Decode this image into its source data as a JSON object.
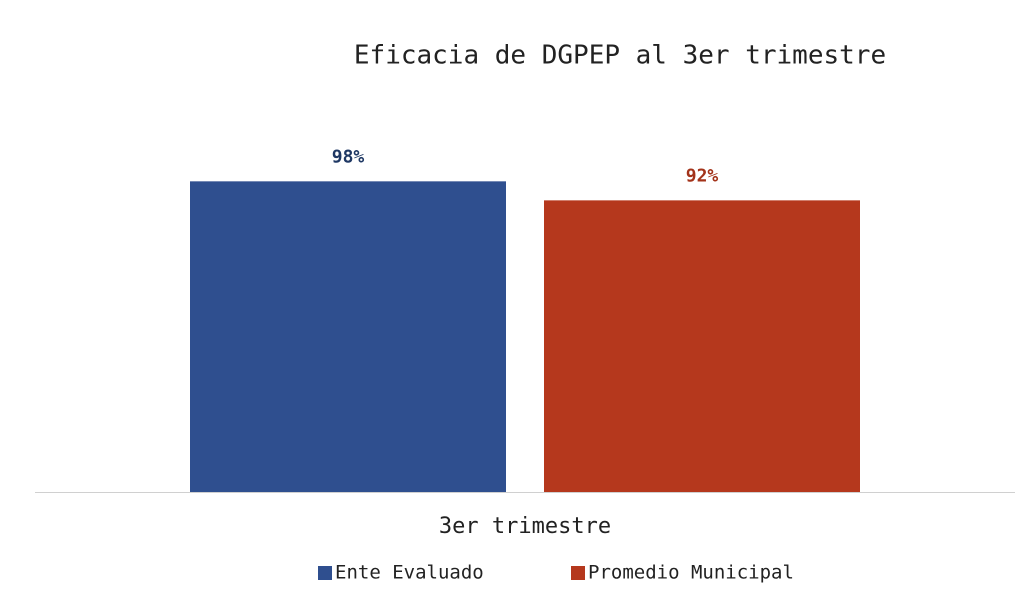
{
  "chart_data": {
    "type": "bar",
    "title": "Eficacia de DGPEP al 3er trimestre",
    "categories": [
      "3er trimestre"
    ],
    "series": [
      {
        "name": "Ente Evaluado",
        "color": "#2f4f8f",
        "label_color": "#1f3864",
        "values": [
          98
        ],
        "value_labels": [
          "98%"
        ]
      },
      {
        "name": "Promedio Municipal",
        "color": "#b5381d",
        "label_color": "#a3331a",
        "values": [
          92
        ],
        "value_labels": [
          "92%"
        ]
      }
    ],
    "ylim": [
      0,
      100
    ],
    "legend": "bottom"
  }
}
